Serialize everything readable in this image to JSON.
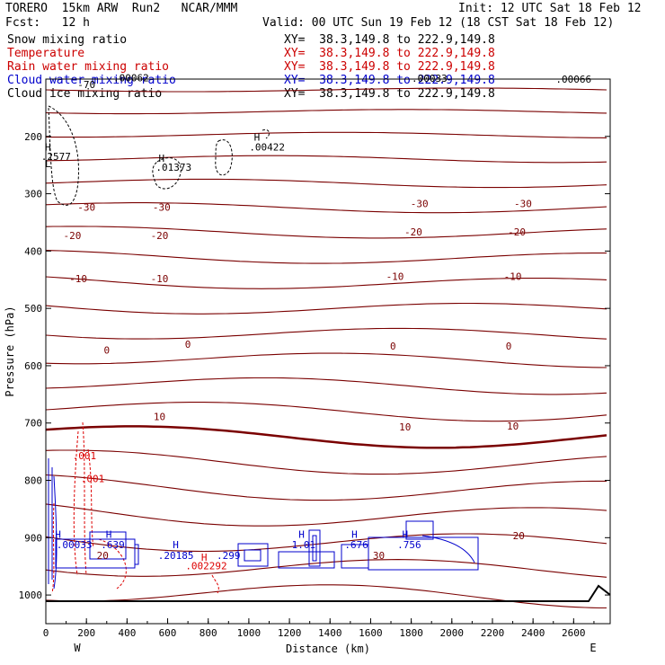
{
  "header": {
    "title_left": "TORERO  15km ARW  Run2   NCAR/MMM",
    "init": "Init: 12 UTC Sat 18 Feb 12",
    "fcst": "Fcst:   12 h",
    "valid": "Valid: 00 UTC Sun 19 Feb 12 (18 CST Sat 18 Feb 12)"
  },
  "legend": [
    {
      "label": "Snow mixing ratio",
      "xy": "XY=  38.3,149.8 to 222.9,149.8",
      "color": "#000000"
    },
    {
      "label": "Temperature",
      "xy": "XY=  38.3,149.8 to 222.9,149.8",
      "color": "#cc0000"
    },
    {
      "label": "Rain water mixing ratio",
      "xy": "XY=  38.3,149.8 to 222.9,149.8",
      "color": "#cc0000"
    },
    {
      "label": "Cloud water mixing ratio",
      "xy": "XY=  38.3,149.8 to 222.9,149.8",
      "color": "#0000cc"
    },
    {
      "label": "Cloud ice mixing ratio",
      "xy": "XY=  38.3,149.8 to 222.9,149.8",
      "color": "#000000"
    }
  ],
  "chart_data": {
    "type": "contour",
    "xlabel": "Distance (km)",
    "ylabel": "Pressure (hPa)",
    "xlim": [
      0,
      2780
    ],
    "ylim": [
      1050,
      100
    ],
    "x_ticks": [
      0,
      200,
      400,
      600,
      800,
      1000,
      1200,
      1400,
      1600,
      1800,
      2000,
      2200,
      2400,
      2600
    ],
    "y_ticks": [
      200,
      300,
      400,
      500,
      600,
      700,
      800,
      900,
      1000
    ],
    "end_labels": {
      "left": "W",
      "right": "E"
    },
    "temperature_labels": [
      {
        "x": 200,
        "p": 330,
        "text": "-30"
      },
      {
        "x": 570,
        "p": 330,
        "text": "-30"
      },
      {
        "x": 1840,
        "p": 323,
        "text": "-30"
      },
      {
        "x": 2350,
        "p": 323,
        "text": "-30"
      },
      {
        "x": 130,
        "p": 379,
        "text": "-20"
      },
      {
        "x": 560,
        "p": 379,
        "text": "-20"
      },
      {
        "x": 1810,
        "p": 373,
        "text": "-20"
      },
      {
        "x": 2320,
        "p": 373,
        "text": "-20"
      },
      {
        "x": 160,
        "p": 454,
        "text": "-10"
      },
      {
        "x": 560,
        "p": 454,
        "text": "-10"
      },
      {
        "x": 1720,
        "p": 450,
        "text": "-10"
      },
      {
        "x": 2300,
        "p": 450,
        "text": "-10"
      },
      {
        "x": 300,
        "p": 579,
        "text": "0"
      },
      {
        "x": 700,
        "p": 569,
        "text": "0"
      },
      {
        "x": 1710,
        "p": 572,
        "text": "0"
      },
      {
        "x": 2280,
        "p": 572,
        "text": "0"
      },
      {
        "x": 560,
        "p": 695,
        "text": "10"
      },
      {
        "x": 1770,
        "p": 713,
        "text": "10"
      },
      {
        "x": 2300,
        "p": 711,
        "text": "10"
      },
      {
        "x": 2330,
        "p": 903,
        "text": "20"
      },
      {
        "x": 280,
        "p": 937,
        "text": "20"
      },
      {
        "x": 1640,
        "p": 937,
        "text": "30"
      }
    ],
    "rain_labels": [
      {
        "x": 190,
        "p": 763,
        "text": ".001"
      },
      {
        "x": 230,
        "p": 803,
        "text": ".001"
      }
    ],
    "cloud_water_labels": [
      {
        "x": 60,
        "p": 900,
        "text": "H"
      },
      {
        "x": 140,
        "p": 918,
        "text": ".00033"
      },
      {
        "x": 310,
        "p": 900,
        "text": "H"
      },
      {
        "x": 330,
        "p": 918,
        "text": ".639"
      },
      {
        "x": 640,
        "p": 918,
        "text": "H"
      },
      {
        "x": 640,
        "p": 937,
        "text": ".20185"
      },
      {
        "x": 900,
        "p": 937,
        "text": ".299"
      },
      {
        "x": 1260,
        "p": 900,
        "text": "H"
      },
      {
        "x": 1270,
        "p": 918,
        "text": "1.01"
      },
      {
        "x": 1520,
        "p": 900,
        "text": "H"
      },
      {
        "x": 1530,
        "p": 918,
        "text": ".676"
      },
      {
        "x": 1770,
        "p": 900,
        "text": "H"
      },
      {
        "x": 1790,
        "p": 918,
        "text": ".756"
      }
    ],
    "rain_max_labels": [
      {
        "x": 780,
        "p": 940,
        "text": "H"
      },
      {
        "x": 790,
        "p": 955,
        "text": ".002292"
      }
    ],
    "ice_labels": [
      {
        "x": 10,
        "p": 225,
        "text": "H"
      },
      {
        "x": 50,
        "p": 241,
        "text": ".2577"
      },
      {
        "x": 10,
        "p": 254,
        "text": "L"
      },
      {
        "x": 570,
        "p": 244,
        "text": "H"
      },
      {
        "x": 630,
        "p": 260,
        "text": ".01373"
      },
      {
        "x": 1040,
        "p": 207,
        "text": "H"
      },
      {
        "x": 1090,
        "p": 225,
        "text": ".00422"
      }
    ],
    "top_labels": [
      {
        "x": 420,
        "p": 104,
        "text": ".00062"
      },
      {
        "x": 2600,
        "p": 106,
        "text": ".00066"
      },
      {
        "x": 1890,
        "p": 105,
        "text": ".00033"
      },
      {
        "x": 200,
        "p": 116,
        "text": "-70"
      }
    ],
    "temperature_levels": [
      -70,
      -65,
      -60,
      -55,
      -50,
      -45,
      -40,
      -35,
      -30,
      -25,
      -20,
      -15,
      -10,
      -5,
      0,
      5,
      10,
      15,
      20,
      25,
      30
    ]
  }
}
